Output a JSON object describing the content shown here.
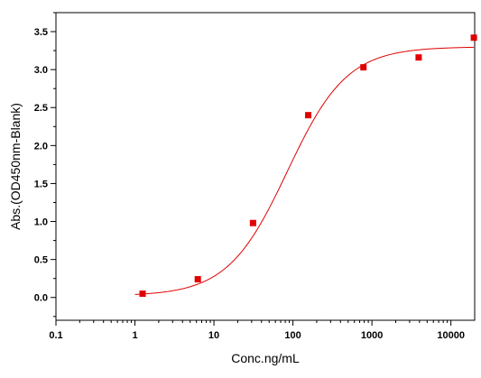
{
  "chart_data": {
    "type": "scatter",
    "xlabel": "Conc.ng/mL",
    "ylabel": "Abs.(OD450nm-Blank)",
    "xscale": "log",
    "xlim": [
      0.1,
      20000
    ],
    "ylim": [
      -0.3,
      3.75
    ],
    "x_ticks": [
      0.1,
      1,
      10,
      100,
      1000,
      10000
    ],
    "x_tick_labels": [
      "0.1",
      "1",
      "10",
      "100",
      "1000",
      "10000"
    ],
    "y_ticks": [
      0.0,
      0.5,
      1.0,
      1.5,
      2.0,
      2.5,
      3.0,
      3.5
    ],
    "y_tick_labels": [
      "0.0",
      "0.5",
      "1.0",
      "1.5",
      "2.0",
      "2.5",
      "3.0",
      "3.5"
    ],
    "grid": false,
    "legend": "none",
    "series": [
      {
        "type": "scatter",
        "marker": "square",
        "color": "#e00000",
        "x": [
          1.25,
          6.25,
          31.25,
          156.25,
          781.25,
          3906.25,
          19531.25
        ],
        "y": [
          0.05,
          0.24,
          0.98,
          2.4,
          3.03,
          3.16,
          3.42
        ]
      },
      {
        "type": "line",
        "fit": "4PL",
        "color": "#e00000",
        "params": {
          "bottom": 0.02,
          "top": 3.3,
          "ec50": 85,
          "hill": 1.15
        }
      }
    ]
  }
}
